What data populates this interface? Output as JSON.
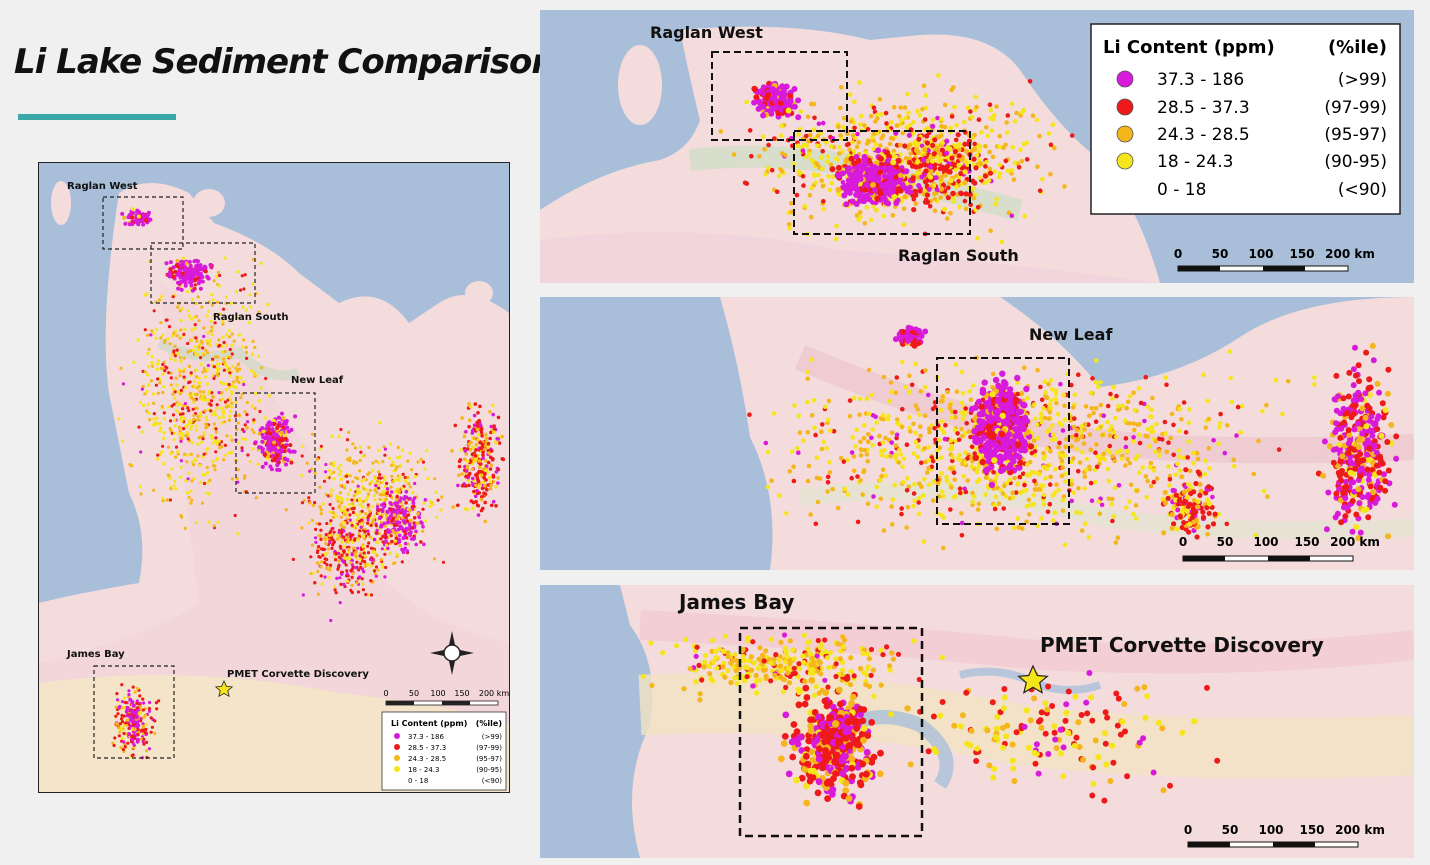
{
  "title": "Li Lake Sediment Comparisons",
  "colors": {
    "water": "#a9bfd9",
    "land": "#f4dcdc",
    "class_1": "#d81adb",
    "class_2": "#ee1a1a",
    "class_3": "#f4b61a",
    "class_4": "#f5e51a",
    "accent_rule": "#3aa7a8"
  },
  "legend": {
    "title": "Li Content (ppm)",
    "pct_title": "(%ile)",
    "items": [
      {
        "range": "37.3 - 186",
        "pct": "(>99)",
        "color": "#d81adb"
      },
      {
        "range": "28.5 - 37.3",
        "pct": "(97-99)",
        "color": "#ee1a1a"
      },
      {
        "range": "24.3 - 28.5",
        "pct": "(95-97)",
        "color": "#f4b61a"
      },
      {
        "range": "18 - 24.3",
        "pct": "(90-95)",
        "color": "#f5e51a"
      },
      {
        "range": "0 - 18",
        "pct": "(<90)",
        "color": ""
      }
    ]
  },
  "scale": {
    "ticks": [
      "0",
      "50",
      "100",
      "150",
      "200 km"
    ]
  },
  "labels": {
    "raglan_west": "Raglan West",
    "raglan_south": "Raglan South",
    "new_leaf": "New Leaf",
    "james_bay": "James Bay",
    "pmet": "PMET Corvette Discovery"
  },
  "icons": {
    "north_arrow": "compass-rose-icon",
    "discovery": "star-icon"
  }
}
